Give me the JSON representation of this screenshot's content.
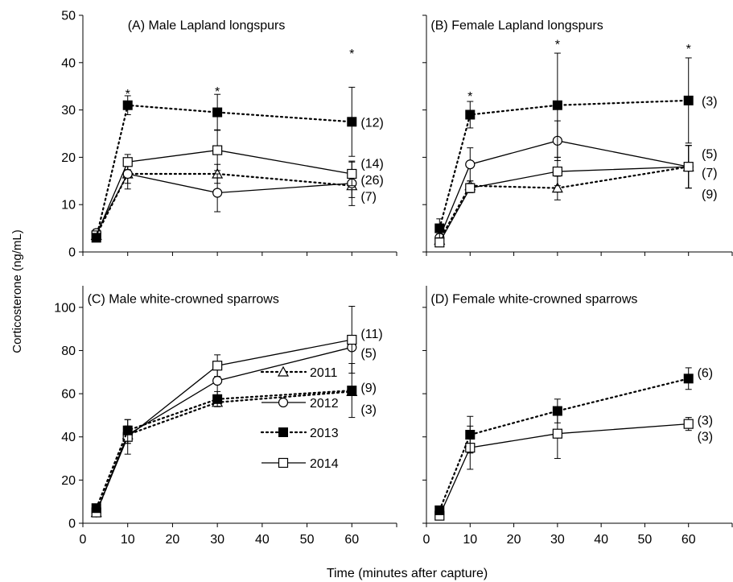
{
  "figure": {
    "ylabel": "Corticosterone (ng/mL)",
    "xlabel": "Time (minutes after capture)"
  },
  "legend": {
    "placement": "inside panel C, bottom-right",
    "entries": [
      {
        "label": "2011",
        "marker": "open-triangle",
        "line": "dotted"
      },
      {
        "label": "2012",
        "marker": "open-circle",
        "line": "solid"
      },
      {
        "label": "2013",
        "marker": "filled-square",
        "line": "dotted"
      },
      {
        "label": "2014",
        "marker": "open-square",
        "line": "solid"
      }
    ]
  },
  "chart_data": [
    {
      "type": "line",
      "title": "(A)  Male Lapland longspurs",
      "x": [
        3,
        10,
        30,
        60
      ],
      "xlim": [
        0,
        70
      ],
      "xticks": [],
      "ylim": [
        0,
        50
      ],
      "yticks": [
        0,
        10,
        20,
        30,
        40,
        50
      ],
      "series": [
        {
          "name": "2011",
          "values": [
            3.5,
            16.5,
            16.5,
            14.0
          ],
          "err": [
            0.8,
            2.0,
            2.0,
            2.5
          ]
        },
        {
          "name": "2012",
          "values": [
            4.0,
            16.5,
            12.5,
            14.5
          ],
          "err": [
            0.8,
            3.2,
            4.0,
            4.7
          ],
          "n_label": "(7)"
        },
        {
          "name": "2013",
          "values": [
            3.0,
            31.0,
            29.5,
            27.5
          ],
          "err": [
            0.8,
            2.0,
            3.8,
            7.3
          ],
          "n_label": "(12)"
        },
        {
          "name": "2014",
          "values": [
            3.5,
            19.0,
            21.5,
            16.5
          ],
          "err": [
            0.8,
            1.6,
            4.3,
            2.5
          ],
          "n_label": "(14)"
        }
      ],
      "extra_labels": [
        "(26)"
      ],
      "significance": [
        "*",
        "*",
        "*"
      ],
      "significance_x": [
        10,
        30,
        60
      ]
    },
    {
      "type": "line",
      "title": "(B) Female Lapland longspurs",
      "x": [
        3,
        10,
        30,
        60
      ],
      "xlim": [
        0,
        70
      ],
      "xticks": [],
      "ylim": [
        0,
        50
      ],
      "yticks": [],
      "series": [
        {
          "name": "2011",
          "values": [
            2.5,
            14.0,
            13.5,
            18.0
          ],
          "err": [
            0.8,
            1.0,
            2.5,
            4.5
          ],
          "n_label": "(9)"
        },
        {
          "name": "2012",
          "values": [
            3.0,
            18.5,
            23.5,
            18.0
          ],
          "err": [
            0.8,
            3.5,
            4.2,
            4.5
          ],
          "n_label": "(5)"
        },
        {
          "name": "2013",
          "values": [
            5.0,
            29.0,
            31.0,
            32.0
          ],
          "err": [
            2.0,
            2.8,
            11.0,
            9.0
          ],
          "n_label": "(3)"
        },
        {
          "name": "2014",
          "values": [
            2.0,
            13.5,
            17.0,
            18.0
          ],
          "err": [
            0.8,
            1.0,
            3.0,
            4.5
          ],
          "n_label": "(7)"
        }
      ],
      "significance": [
        "*",
        "*",
        "*"
      ],
      "significance_x": [
        10,
        30,
        60
      ]
    },
    {
      "type": "line",
      "title": "(C) Male white-crowned sparrows",
      "x": [
        3,
        10,
        30,
        60
      ],
      "xlim": [
        0,
        70
      ],
      "xticks": [
        0,
        10,
        20,
        30,
        40,
        50,
        60
      ],
      "ylim": [
        0,
        110
      ],
      "yticks": [
        0,
        20,
        40,
        60,
        80,
        100
      ],
      "series": [
        {
          "name": "2011",
          "values": [
            5.0,
            41.0,
            56.0,
            61.0
          ],
          "err": [
            1.0,
            4.0,
            2.0,
            0
          ],
          "n_label": "(3)"
        },
        {
          "name": "2012",
          "values": [
            5.0,
            41.0,
            66.0,
            81.5
          ],
          "err": [
            1.0,
            4.0,
            9.0,
            0
          ],
          "n_label": "(5)"
        },
        {
          "name": "2013",
          "values": [
            7.0,
            43.0,
            57.5,
            61.5
          ],
          "err": [
            1.5,
            5.0,
            3.5,
            12.5
          ],
          "n_label": "(9)"
        },
        {
          "name": "2014",
          "values": [
            5.0,
            40.0,
            73.0,
            85.0
          ],
          "err": [
            1.0,
            8.0,
            5.0,
            15.5
          ],
          "n_label": "(11)"
        }
      ]
    },
    {
      "type": "line",
      "title": "(D) Female white-crowned sparrows",
      "x": [
        3,
        10,
        30,
        60
      ],
      "xlim": [
        0,
        70
      ],
      "xticks": [
        0,
        10,
        20,
        30,
        40,
        50,
        60
      ],
      "ylim": [
        0,
        110
      ],
      "yticks": [],
      "series": [
        {
          "name": "2013",
          "values": [
            6.0,
            41.0,
            52.0,
            67.0
          ],
          "err": [
            1.5,
            8.5,
            5.5,
            5.0
          ],
          "n_label": "(6)"
        },
        {
          "name": "2014",
          "values": [
            3.5,
            35.0,
            41.5,
            46.0
          ],
          "err": [
            1.5,
            10.0,
            11.5,
            3.0
          ],
          "n_label": "(3)"
        }
      ],
      "extra_labels": [
        "(3)"
      ]
    }
  ]
}
